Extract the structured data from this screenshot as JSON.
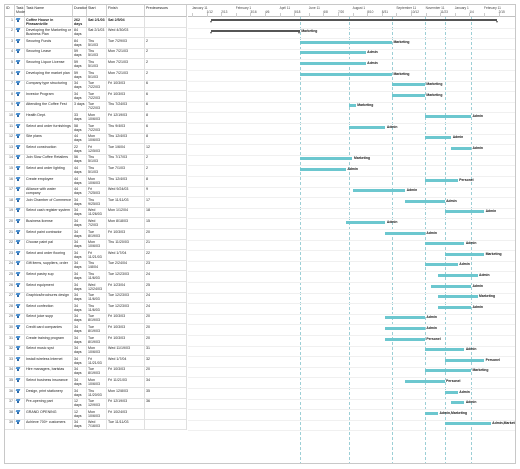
{
  "headers": {
    "id": "ID",
    "mode": "Task Mode",
    "name": "Task Name",
    "duration": "Duration",
    "start": "Start",
    "finish": "Finish",
    "predecessors": "Predecessors"
  },
  "timeline": [
    {
      "label": "January 11"
    },
    {
      "label": "1/12"
    },
    {
      "label": "2/13"
    },
    {
      "label": "February 1"
    },
    {
      "label": "3/16"
    },
    {
      "label": "4/6"
    },
    {
      "label": "April 11"
    },
    {
      "label": "5/18"
    },
    {
      "label": "June 11"
    },
    {
      "label": "6/8"
    },
    {
      "label": "7/20"
    },
    {
      "label": "August 1"
    },
    {
      "label": "8/10"
    },
    {
      "label": "8/31"
    },
    {
      "label": "September 11"
    },
    {
      "label": "10/12"
    },
    {
      "label": "November 11"
    },
    {
      "label": "11/23"
    },
    {
      "label": "January 1"
    },
    {
      "label": "1/4"
    },
    {
      "label": "February 11"
    },
    {
      "label": "2/15"
    }
  ],
  "tasks": [
    {
      "id": "1",
      "name": "Coffee House in Pleasantville",
      "duration": "262 days",
      "start": "Sat 2/1/03",
      "finish": "Sat 2/5/04",
      "pred": "",
      "summary": true,
      "s": 0.07,
      "e": 0.94,
      "res": ""
    },
    {
      "id": "2",
      "name": "Developing the Marketing or Business Plan",
      "duration": "84 days",
      "start": "Sat 2/1/03",
      "finish": "Wed 4/30/03",
      "pred": "",
      "summary": true,
      "s": 0.07,
      "e": 0.34,
      "res": "Marketing"
    },
    {
      "id": "3",
      "name": "Securing Funds",
      "duration": "84 days",
      "start": "Thu 5/1/03",
      "finish": "Tue 7/29/03",
      "pred": "2",
      "s": 0.34,
      "e": 0.62,
      "res": "Marketing"
    },
    {
      "id": "4",
      "name": "Securing Lease",
      "duration": "59 days",
      "start": "Thu 5/1/03",
      "finish": "Mon 7/21/03",
      "pred": "2",
      "s": 0.34,
      "e": 0.54,
      "res": "Admin"
    },
    {
      "id": "5",
      "name": "Securing Liquor License",
      "duration": "59 days",
      "start": "Thu 5/1/03",
      "finish": "Mon 7/21/03",
      "pred": "2",
      "s": 0.34,
      "e": 0.54,
      "res": "Admin"
    },
    {
      "id": "6",
      "name": "Developing the market plan",
      "duration": "59 days",
      "start": "Thu 5/1/03",
      "finish": "Mon 7/21/03",
      "pred": "2",
      "s": 0.34,
      "e": 0.62,
      "res": "Marketing"
    },
    {
      "id": "7",
      "name": "Company type structuring",
      "duration": "34 days",
      "start": "Tue 7/22/03",
      "finish": "Fri 10/3/03",
      "pred": "6",
      "s": 0.62,
      "e": 0.72,
      "res": "Marketing"
    },
    {
      "id": "8",
      "name": "Investor Program",
      "duration": "34 days",
      "start": "Tue 7/22/03",
      "finish": "Fri 10/3/03",
      "pred": "6",
      "s": 0.62,
      "e": 0.72,
      "res": "Marketing"
    },
    {
      "id": "9",
      "name": "Attending the Coffee Fest",
      "duration": "3 days",
      "start": "Tue 7/22/03",
      "finish": "Thu 7/24/03",
      "pred": "6",
      "s": 0.49,
      "e": 0.51,
      "res": "Marketing"
    },
    {
      "id": "10",
      "name": "Health Dept.",
      "duration": "33 days",
      "start": "Mon 10/6/03",
      "finish": "Fri 12/19/03",
      "pred": "8",
      "s": 0.72,
      "e": 0.86,
      "res": "Admin"
    },
    {
      "id": "11",
      "name": "Select and order furnishings",
      "duration": "58 days",
      "start": "Tue 7/22/03",
      "finish": "Thu 9/4/03",
      "pred": "6",
      "s": 0.49,
      "e": 0.6,
      "res": "Admin"
    },
    {
      "id": "12",
      "name": "Site plans",
      "duration": "44 days",
      "start": "Mon 10/6/03",
      "finish": "Thu 12/4/03",
      "pred": "8",
      "s": 0.72,
      "e": 0.8,
      "res": "Admin"
    },
    {
      "id": "13",
      "name": "Select construction",
      "duration": "22 days",
      "start": "Fri 12/5/03",
      "finish": "Tue 1/6/04",
      "pred": "12",
      "s": 0.8,
      "e": 0.86,
      "res": "Admin"
    },
    {
      "id": "14",
      "name": "Join Slow Coffee Retailers",
      "duration": "56 days",
      "start": "Thu 5/1/03",
      "finish": "Thu 7/17/03",
      "pred": "2",
      "s": 0.34,
      "e": 0.5,
      "res": "Marketing"
    },
    {
      "id": "15",
      "name": "Select and order lighting",
      "duration": "44 days",
      "start": "Thu 5/1/03",
      "finish": "Tue 7/1/03",
      "pred": "2",
      "s": 0.34,
      "e": 0.48,
      "res": "Admin"
    },
    {
      "id": "16",
      "name": "Create employee",
      "duration": "44 days",
      "start": "Mon 10/6/03",
      "finish": "Thu 12/4/03",
      "pred": "8",
      "s": 0.72,
      "e": 0.82,
      "res": "Personel"
    },
    {
      "id": "17",
      "name": "Alliance with water company",
      "duration": "44 days",
      "start": "Fri 7/25/03",
      "finish": "Wed 9/24/03",
      "pred": "9",
      "s": 0.5,
      "e": 0.66,
      "res": "Admin"
    },
    {
      "id": "18",
      "name": "Join Chamber of Commerce",
      "duration": "34 days",
      "start": "Thu 9/25/03",
      "finish": "Tue 11/11/03",
      "pred": "17",
      "s": 0.66,
      "e": 0.78,
      "res": "Admin"
    },
    {
      "id": "19",
      "name": "Select cash register system",
      "duration": "34 days",
      "start": "Wed 11/26/03",
      "finish": "Mon 1/12/04",
      "pred": "18",
      "s": 0.78,
      "e": 0.9,
      "res": "Admin"
    },
    {
      "id": "20",
      "name": "Business license",
      "duration": "34 days",
      "start": "Wed 7/2/03",
      "finish": "Mon 8/18/03",
      "pred": "15",
      "s": 0.48,
      "e": 0.6,
      "res": "Admin"
    },
    {
      "id": "21",
      "name": "Select paint contractor",
      "duration": "34 days",
      "start": "Tue 8/19/03",
      "finish": "Fri 10/3/03",
      "pred": "20",
      "s": 0.6,
      "e": 0.72,
      "res": "Admin"
    },
    {
      "id": "22",
      "name": "Choose paint pal",
      "duration": "34 days",
      "start": "Mon 10/6/03",
      "finish": "Thu 11/20/03",
      "pred": "21",
      "s": 0.72,
      "e": 0.84,
      "res": "Admin"
    },
    {
      "id": "23",
      "name": "Select and order flooring",
      "duration": "34 days",
      "start": "Fri 11/21/03",
      "finish": "Wed 1/7/04",
      "pred": "22",
      "s": 0.78,
      "e": 0.9,
      "res": "Marketing"
    },
    {
      "id": "24",
      "name": "Gift items, suppliers, order",
      "duration": "34 days",
      "start": "Thu 1/8/04",
      "finish": "Tue 2/24/04",
      "pred": "23",
      "s": 0.72,
      "e": 0.82,
      "res": "Admin"
    },
    {
      "id": "25",
      "name": "Select pastry sup",
      "duration": "34 days",
      "start": "Thu 11/6/03",
      "finish": "Tue 12/23/03",
      "pred": "24",
      "s": 0.76,
      "e": 0.88,
      "res": "Admin"
    },
    {
      "id": "26",
      "name": "Select equipment",
      "duration": "34 days",
      "start": "Wed 12/24/03",
      "finish": "Fri 1/23/04",
      "pred": "25",
      "s": 0.74,
      "e": 0.86,
      "res": "Admin"
    },
    {
      "id": "27",
      "name": "Graphics/brochures design",
      "duration": "34 days",
      "start": "Tue 11/6/03",
      "finish": "Tue 12/23/03",
      "pred": "24",
      "s": 0.76,
      "e": 0.88,
      "res": "Marketing"
    },
    {
      "id": "28",
      "name": "Select confection",
      "duration": "34 days",
      "start": "Thu 11/6/03",
      "finish": "Tue 12/23/03",
      "pred": "24",
      "s": 0.76,
      "e": 0.86,
      "res": "Admin"
    },
    {
      "id": "29",
      "name": "Select juice supp",
      "duration": "34 days",
      "start": "Tue 8/19/03",
      "finish": "Fri 10/3/03",
      "pred": "20",
      "s": 0.6,
      "e": 0.72,
      "res": "Admin"
    },
    {
      "id": "30",
      "name": "Credit card companies",
      "duration": "34 days",
      "start": "Tue 8/19/03",
      "finish": "Fri 10/3/03",
      "pred": "20",
      "s": 0.6,
      "e": 0.72,
      "res": "Admin"
    },
    {
      "id": "31",
      "name": "Create training program",
      "duration": "34 days",
      "start": "Tue 8/19/03",
      "finish": "Fri 10/3/03",
      "pred": "20",
      "s": 0.6,
      "e": 0.72,
      "res": "Personel"
    },
    {
      "id": "32",
      "name": "Select music syst",
      "duration": "34 days",
      "start": "Mon 10/6/03",
      "finish": "Wed 11/19/03",
      "pred": "31",
      "s": 0.72,
      "e": 0.84,
      "res": "Admin"
    },
    {
      "id": "33",
      "name": "Install wireless Internet",
      "duration": "34 days",
      "start": "Fri 11/21/03",
      "finish": "Wed 1/7/04",
      "pred": "32",
      "s": 0.78,
      "e": 0.9,
      "res": "Personel"
    },
    {
      "id": "34",
      "name": "Hire managers, baristas",
      "duration": "34 days",
      "start": "Tue 8/19/03",
      "finish": "Fri 10/3/03",
      "pred": "20",
      "s": 0.72,
      "e": 0.86,
      "res": "Marketing"
    },
    {
      "id": "35",
      "name": "Select business insurance",
      "duration": "34 days",
      "start": "Mon 10/6/03",
      "finish": "Fri 11/21/03",
      "pred": "34",
      "s": 0.66,
      "e": 0.78,
      "res": "Personel"
    },
    {
      "id": "36",
      "name": "Design, print stationery",
      "duration": "34 days",
      "start": "Thu 11/20/03",
      "finish": "Mon 12/8/03",
      "pred": "35",
      "s": 0.78,
      "e": 0.82,
      "res": "Admin"
    },
    {
      "id": "37",
      "name": "Pre-opening part",
      "duration": "12 days",
      "start": "Tue 12/9/03",
      "finish": "Fri 12/19/03",
      "pred": "36",
      "s": 0.8,
      "e": 0.84,
      "res": "Admin"
    },
    {
      "id": "38",
      "name": "GRAND OPENING",
      "duration": "12 days",
      "start": "Mon 10/6/03",
      "finish": "Fri 10/24/03",
      "pred": "",
      "s": 0.72,
      "e": 0.76,
      "res": "Admin,Marketing"
    },
    {
      "id": "39",
      "name": "Achieve 700+ customers",
      "duration": "34 days",
      "start": "Wed 7/16/03",
      "finish": "Tue 11/11/03",
      "pred": "",
      "s": 0.78,
      "e": 0.92,
      "res": "Admin,Marketing"
    }
  ]
}
